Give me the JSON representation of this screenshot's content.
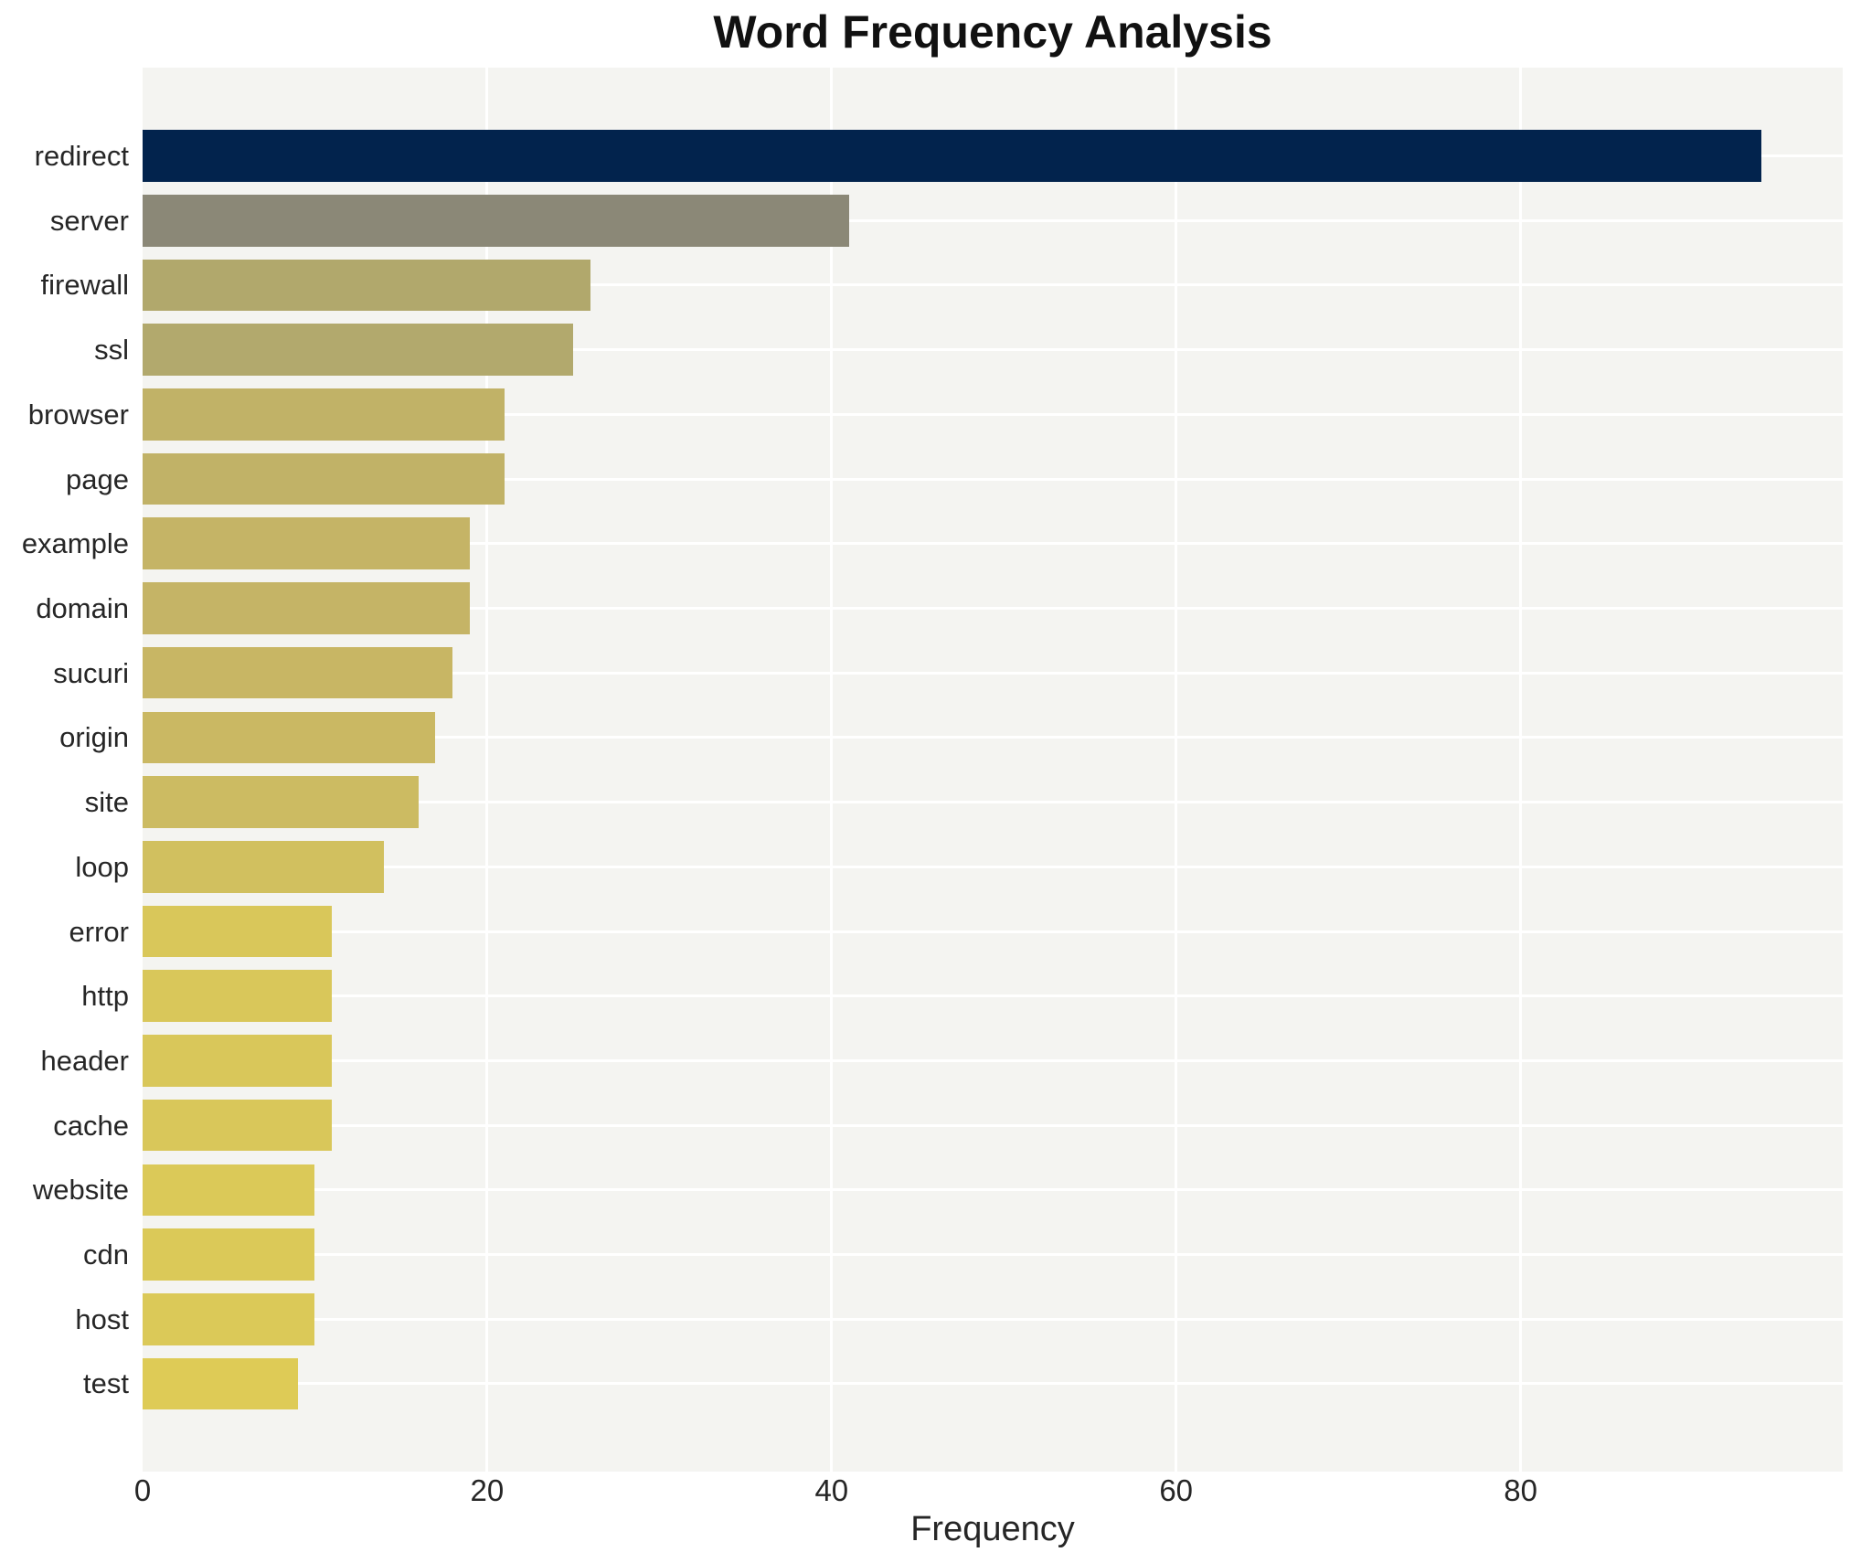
{
  "chart_data": {
    "type": "bar",
    "orientation": "horizontal",
    "title": "Word Frequency Analysis",
    "xlabel": "Frequency",
    "ylabel": "",
    "categories": [
      "redirect",
      "server",
      "firewall",
      "ssl",
      "browser",
      "page",
      "example",
      "domain",
      "sucuri",
      "origin",
      "site",
      "loop",
      "error",
      "http",
      "header",
      "cache",
      "website",
      "cdn",
      "host",
      "test"
    ],
    "values": [
      94,
      41,
      26,
      25,
      21,
      21,
      19,
      19,
      18,
      17,
      16,
      14,
      11,
      11,
      11,
      11,
      10,
      10,
      10,
      9
    ],
    "bar_colors": [
      "#02234d",
      "#8b8877",
      "#b1a86c",
      "#b2a96d",
      "#c1b267",
      "#c1b267",
      "#c5b466",
      "#c5b466",
      "#c8b664",
      "#cab863",
      "#ccbb62",
      "#d1c05f",
      "#d9c75a",
      "#d9c75a",
      "#d9c75a",
      "#d9c75a",
      "#dbc958",
      "#dbc958",
      "#dbc958",
      "#decb56"
    ],
    "x_ticks": [
      0,
      20,
      40,
      60,
      80
    ],
    "xlim": [
      0,
      98.7
    ],
    "grid": true,
    "legend": false,
    "plot_background": "#f4f4f1",
    "gridline_color": "#ffffff",
    "title_color": "#111111",
    "tick_label_color": "#262626"
  }
}
